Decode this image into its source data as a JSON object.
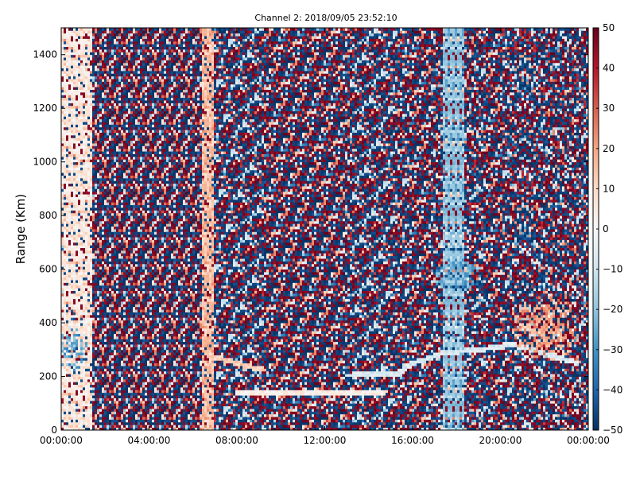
{
  "chart_data": {
    "type": "heatmap",
    "title": "Channel 2: 2018/09/05 23:52:10",
    "xlabel": "",
    "ylabel": "Range (Km)",
    "x_tick_labels": [
      "00:00:00",
      "04:00:00",
      "08:00:00",
      "12:00:00",
      "16:00:00",
      "20:00:00",
      "00:00:00"
    ],
    "x_ticks_hours": [
      0,
      4,
      8,
      12,
      16,
      20,
      24
    ],
    "xlim_hours": [
      0,
      24
    ],
    "y_ticks": [
      0,
      200,
      400,
      600,
      800,
      1000,
      1200,
      1400
    ],
    "ylim": [
      0,
      1500
    ],
    "colorbar": {
      "ticks": [
        50,
        40,
        30,
        20,
        10,
        0,
        -10,
        -20,
        -30,
        -40,
        -50
      ],
      "tick_labels": [
        "50",
        "40",
        "30",
        "20",
        "10",
        "0",
        "−10",
        "−20",
        "−30",
        "−40",
        "−50"
      ],
      "range": [
        -50,
        50
      ],
      "colormap": "RdBu_r"
    },
    "features": [
      {
        "kind": "streak",
        "x_hours": [
          6.4,
          7.0
        ],
        "y": [
          0,
          1500
        ],
        "value": 15
      },
      {
        "kind": "streak",
        "x_hours": [
          0.0,
          1.4
        ],
        "y": [
          0,
          1500
        ],
        "value": 5
      },
      {
        "kind": "streak",
        "x_hours": [
          17.4,
          18.3
        ],
        "y": [
          0,
          1500
        ],
        "value": -20
      },
      {
        "kind": "trace",
        "points": [
          [
            6.7,
            280
          ],
          [
            8.0,
            250
          ],
          [
            9.2,
            225
          ]
        ],
        "value": 12
      },
      {
        "kind": "trace",
        "points": [
          [
            8.0,
            140
          ],
          [
            14.7,
            140
          ]
        ],
        "value": 3
      },
      {
        "kind": "trace",
        "points": [
          [
            13.0,
            205
          ],
          [
            15.3,
            210
          ],
          [
            16.0,
            250
          ],
          [
            17.5,
            290
          ],
          [
            19.0,
            300
          ],
          [
            20.5,
            320
          ],
          [
            21.5,
            300
          ],
          [
            23.5,
            250
          ]
        ],
        "value": -8
      },
      {
        "kind": "patch",
        "center": [
          18.0,
          580
        ],
        "radius_h": 1.2,
        "radius_y": 60,
        "value": -28
      },
      {
        "kind": "patch",
        "center": [
          22.0,
          380
        ],
        "radius_h": 1.6,
        "radius_y": 120,
        "value": 18
      },
      {
        "kind": "patch",
        "center": [
          0.5,
          300
        ],
        "radius_h": 0.7,
        "radius_y": 80,
        "value": -25
      }
    ]
  }
}
